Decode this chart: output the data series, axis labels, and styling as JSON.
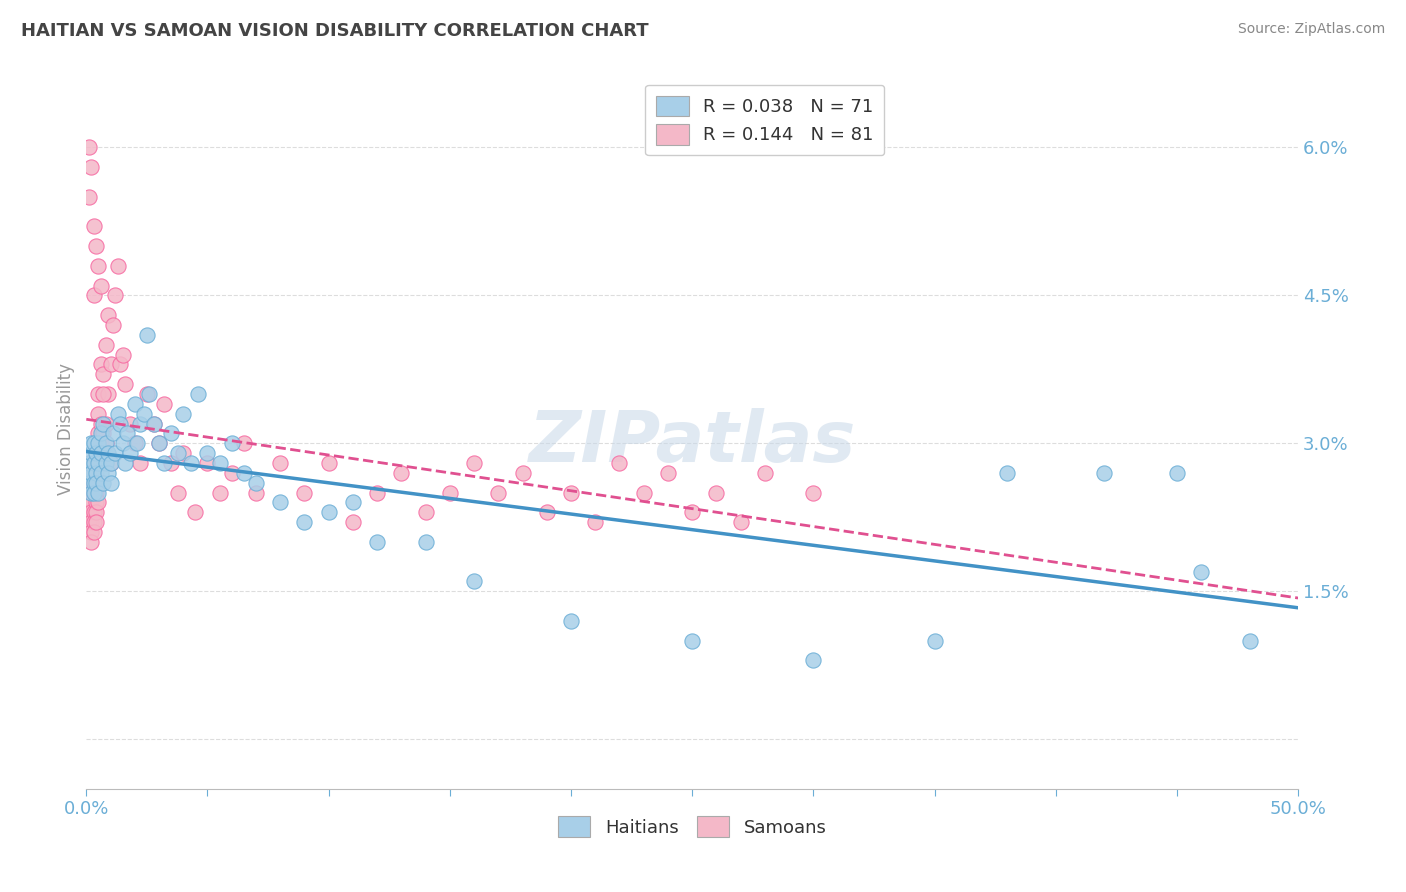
{
  "title": "HAITIAN VS SAMOAN VISION DISABILITY CORRELATION CHART",
  "source": "Source: ZipAtlas.com",
  "ylabel": "Vision Disability",
  "yaxis_ticks": [
    0.0,
    0.015,
    0.03,
    0.045,
    0.06
  ],
  "yaxis_labels": [
    "",
    "1.5%",
    "3.0%",
    "4.5%",
    "6.0%"
  ],
  "xlim": [
    0.0,
    0.5
  ],
  "ylim": [
    -0.005,
    0.068
  ],
  "watermark": "ZIPatlas",
  "legend_blue_label": "R = 0.038   N = 71",
  "legend_pink_label": "R = 0.144   N = 81",
  "legend_bottom_haitians": "Haitians",
  "legend_bottom_samoans": "Samoans",
  "blue_color": "#a8cfe8",
  "pink_color": "#f4b8c8",
  "blue_edge_color": "#6baed6",
  "pink_edge_color": "#f768a1",
  "blue_line_color": "#4292c6",
  "pink_line_color": "#e05090",
  "title_color": "#444444",
  "source_color": "#888888",
  "axis_label_color": "#6baed6",
  "grid_color": "#dddddd",
  "haitians_x": [
    0.001,
    0.001,
    0.001,
    0.002,
    0.002,
    0.002,
    0.002,
    0.003,
    0.003,
    0.003,
    0.003,
    0.004,
    0.004,
    0.004,
    0.005,
    0.005,
    0.005,
    0.006,
    0.006,
    0.006,
    0.007,
    0.007,
    0.008,
    0.008,
    0.009,
    0.009,
    0.01,
    0.01,
    0.011,
    0.012,
    0.013,
    0.014,
    0.015,
    0.016,
    0.017,
    0.018,
    0.02,
    0.021,
    0.022,
    0.024,
    0.025,
    0.026,
    0.028,
    0.03,
    0.032,
    0.035,
    0.038,
    0.04,
    0.043,
    0.046,
    0.05,
    0.055,
    0.06,
    0.065,
    0.07,
    0.08,
    0.09,
    0.1,
    0.11,
    0.12,
    0.14,
    0.16,
    0.2,
    0.25,
    0.3,
    0.35,
    0.38,
    0.42,
    0.45,
    0.46,
    0.48
  ],
  "haitians_y": [
    0.027,
    0.026,
    0.028,
    0.025,
    0.027,
    0.029,
    0.03,
    0.026,
    0.028,
    0.03,
    0.025,
    0.027,
    0.029,
    0.026,
    0.028,
    0.025,
    0.03,
    0.027,
    0.029,
    0.031,
    0.026,
    0.032,
    0.028,
    0.03,
    0.027,
    0.029,
    0.026,
    0.028,
    0.031,
    0.029,
    0.033,
    0.032,
    0.03,
    0.028,
    0.031,
    0.029,
    0.034,
    0.03,
    0.032,
    0.033,
    0.041,
    0.035,
    0.032,
    0.03,
    0.028,
    0.031,
    0.029,
    0.033,
    0.028,
    0.035,
    0.029,
    0.028,
    0.03,
    0.027,
    0.026,
    0.024,
    0.022,
    0.023,
    0.024,
    0.02,
    0.02,
    0.016,
    0.012,
    0.01,
    0.008,
    0.01,
    0.027,
    0.027,
    0.027,
    0.017,
    0.01
  ],
  "samoans_x": [
    0.001,
    0.001,
    0.001,
    0.001,
    0.001,
    0.001,
    0.002,
    0.002,
    0.002,
    0.002,
    0.002,
    0.002,
    0.002,
    0.003,
    0.003,
    0.003,
    0.003,
    0.003,
    0.004,
    0.004,
    0.004,
    0.004,
    0.005,
    0.005,
    0.005,
    0.005,
    0.006,
    0.006,
    0.006,
    0.007,
    0.007,
    0.008,
    0.008,
    0.009,
    0.009,
    0.01,
    0.01,
    0.011,
    0.012,
    0.013,
    0.014,
    0.015,
    0.016,
    0.018,
    0.02,
    0.022,
    0.025,
    0.028,
    0.03,
    0.032,
    0.035,
    0.038,
    0.04,
    0.045,
    0.05,
    0.055,
    0.06,
    0.065,
    0.07,
    0.08,
    0.09,
    0.1,
    0.11,
    0.12,
    0.13,
    0.14,
    0.15,
    0.16,
    0.17,
    0.18,
    0.19,
    0.2,
    0.21,
    0.22,
    0.23,
    0.24,
    0.25,
    0.26,
    0.27,
    0.28,
    0.3
  ],
  "samoans_y": [
    0.026,
    0.025,
    0.028,
    0.024,
    0.022,
    0.023,
    0.027,
    0.025,
    0.024,
    0.023,
    0.022,
    0.021,
    0.02,
    0.026,
    0.025,
    0.023,
    0.022,
    0.021,
    0.025,
    0.024,
    0.023,
    0.022,
    0.035,
    0.033,
    0.031,
    0.024,
    0.038,
    0.032,
    0.03,
    0.037,
    0.031,
    0.04,
    0.03,
    0.043,
    0.035,
    0.038,
    0.028,
    0.042,
    0.045,
    0.048,
    0.038,
    0.039,
    0.036,
    0.032,
    0.03,
    0.028,
    0.035,
    0.032,
    0.03,
    0.034,
    0.028,
    0.025,
    0.029,
    0.023,
    0.028,
    0.025,
    0.027,
    0.03,
    0.025,
    0.028,
    0.025,
    0.028,
    0.022,
    0.025,
    0.027,
    0.023,
    0.025,
    0.028,
    0.025,
    0.027,
    0.023,
    0.025,
    0.022,
    0.028,
    0.025,
    0.027,
    0.023,
    0.025,
    0.022,
    0.027,
    0.025
  ],
  "samoan_high_x": [
    0.001,
    0.001,
    0.002,
    0.003,
    0.004,
    0.005,
    0.003,
    0.006,
    0.007,
    0.008
  ],
  "samoan_high_y": [
    0.06,
    0.055,
    0.058,
    0.052,
    0.05,
    0.048,
    0.045,
    0.046,
    0.035,
    0.032
  ]
}
